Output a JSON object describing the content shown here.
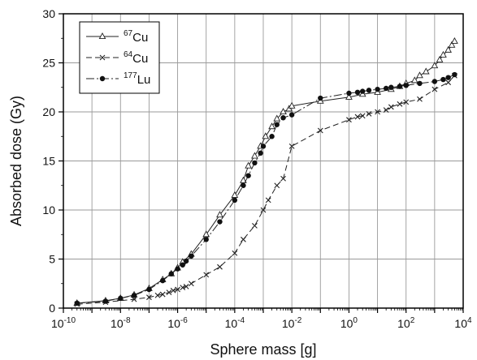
{
  "chart_data": {
    "type": "line",
    "title": "",
    "xlabel": "Sphere mass [g]",
    "ylabel": "Absorbed dose (Gy)",
    "x_scale": "log",
    "xlim": [
      1e-10,
      10000.0
    ],
    "ylim": [
      0,
      30
    ],
    "x_ticks": [
      {
        "value": 1e-10,
        "base": "10",
        "exp": "-10"
      },
      {
        "value": 1e-08,
        "base": "10",
        "exp": "-8"
      },
      {
        "value": 1e-06,
        "base": "10",
        "exp": "-6"
      },
      {
        "value": 0.0001,
        "base": "10",
        "exp": "-4"
      },
      {
        "value": 0.01,
        "base": "10",
        "exp": "-2"
      },
      {
        "value": 1,
        "base": "10",
        "exp": "0"
      },
      {
        "value": 100,
        "base": "10",
        "exp": "2"
      },
      {
        "value": 10000,
        "base": "10",
        "exp": "4"
      }
    ],
    "y_ticks": [
      0,
      5,
      10,
      15,
      20,
      25,
      30
    ],
    "grid": true,
    "legend": "top-left",
    "series": [
      {
        "name_sup": "67",
        "name_base": "Cu",
        "marker": "triangle",
        "line": "solid",
        "x": [
          3e-10,
          3e-09,
          1e-08,
          3e-08,
          1e-07,
          3e-07,
          6e-07,
          1e-06,
          1.5e-06,
          3e-06,
          1e-05,
          3e-05,
          0.0001,
          0.0002,
          0.0003,
          0.0005,
          0.0008,
          0.0012,
          0.002,
          0.003,
          0.005,
          0.008,
          0.01,
          0.1,
          1,
          3,
          10,
          30,
          60,
          100,
          200,
          300,
          500,
          1000,
          1500,
          2000,
          3000,
          4000,
          5000
        ],
        "y": [
          0.5,
          0.75,
          1.0,
          1.35,
          2.0,
          2.9,
          3.5,
          4.1,
          4.7,
          5.5,
          7.5,
          9.5,
          11.5,
          13.0,
          14.5,
          15.5,
          16.5,
          17.5,
          18.5,
          19.3,
          20.0,
          20.3,
          20.6,
          21.1,
          21.5,
          21.8,
          22.0,
          22.3,
          22.6,
          22.9,
          23.2,
          23.7,
          24.1,
          24.7,
          25.3,
          25.8,
          26.3,
          26.8,
          27.2
        ]
      },
      {
        "name_sup": "64",
        "name_base": "Cu",
        "marker": "cross",
        "line": "dashed",
        "x": [
          3e-10,
          3e-09,
          3e-08,
          1e-07,
          2e-07,
          3e-07,
          5e-07,
          7e-07,
          1e-06,
          1.5e-06,
          2e-06,
          3e-06,
          1e-05,
          3e-05,
          0.0001,
          0.0002,
          0.0005,
          0.001,
          0.0015,
          0.003,
          0.005,
          0.01,
          0.1,
          1,
          2,
          3,
          5,
          10,
          20,
          30,
          60,
          100,
          300,
          1000,
          3000,
          5000
        ],
        "y": [
          0.4,
          0.6,
          0.9,
          1.1,
          1.3,
          1.4,
          1.6,
          1.8,
          1.9,
          2.1,
          2.2,
          2.5,
          3.4,
          4.2,
          5.6,
          7.0,
          8.4,
          10.0,
          11.0,
          12.5,
          13.2,
          16.5,
          18.1,
          19.2,
          19.5,
          19.6,
          19.8,
          20.0,
          20.2,
          20.5,
          20.8,
          21.0,
          21.3,
          22.3,
          23.0,
          23.7
        ]
      },
      {
        "name_sup": "177",
        "name_base": "Lu",
        "marker": "circle",
        "line": "dashdot",
        "x": [
          3e-10,
          3e-09,
          1e-08,
          3e-08,
          1e-07,
          3e-07,
          6e-07,
          1e-06,
          1.5e-06,
          2e-06,
          3e-06,
          1e-05,
          3e-05,
          0.0001,
          0.0002,
          0.0003,
          0.0005,
          0.0008,
          0.001,
          0.002,
          0.003,
          0.005,
          0.01,
          0.1,
          1,
          2,
          3,
          5,
          10,
          20,
          30,
          60,
          100,
          300,
          1000,
          2000,
          3000,
          5000
        ],
        "y": [
          0.5,
          0.7,
          1.0,
          1.3,
          1.9,
          2.8,
          3.5,
          4.0,
          4.4,
          4.8,
          5.3,
          7.0,
          8.8,
          11.0,
          12.5,
          13.5,
          14.8,
          15.8,
          16.5,
          17.5,
          18.7,
          19.4,
          19.7,
          21.4,
          21.9,
          22.0,
          22.1,
          22.2,
          22.3,
          22.4,
          22.5,
          22.6,
          22.7,
          22.9,
          23.1,
          23.3,
          23.5,
          23.8
        ]
      }
    ]
  }
}
